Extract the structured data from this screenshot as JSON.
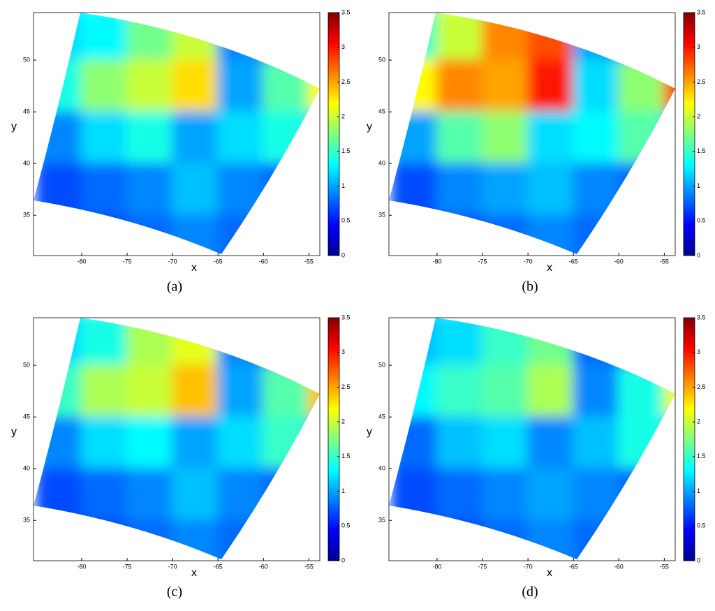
{
  "chart_data": [
    {
      "type": "heatmap",
      "caption": "(a)",
      "xlabel": "x",
      "ylabel": "y",
      "xlim": [
        -85.3,
        -53.8
      ],
      "ylim": [
        31.1,
        54.6
      ],
      "xticks": [
        -80,
        -75,
        -70,
        -65,
        -60,
        -55
      ],
      "yticks": [
        35,
        40,
        45,
        50
      ],
      "clim": [
        0,
        3.5
      ],
      "cticks": [
        0,
        0.5,
        1,
        1.5,
        2,
        2.5,
        3,
        3.5
      ],
      "x": [
        -82.5,
        -77.5,
        -72.5,
        -67.5,
        -62.5,
        -57.5,
        -52.5
      ],
      "y": [
        52.5,
        47.5,
        42.5,
        37.5,
        32.5
      ],
      "z": [
        [
          1.2,
          1.3,
          1.7,
          2.0,
          0.9,
          0.6,
          0.8
        ],
        [
          1.4,
          1.8,
          2.0,
          2.3,
          1.0,
          1.6,
          2.2
        ],
        [
          0.9,
          1.2,
          1.4,
          1.0,
          1.2,
          1.4,
          1.0
        ],
        [
          0.7,
          0.8,
          0.9,
          1.1,
          0.9,
          0.8,
          0.7
        ],
        [
          0.6,
          0.7,
          0.8,
          0.9,
          0.8,
          0.6,
          0.6
        ]
      ]
    },
    {
      "type": "heatmap",
      "caption": "(b)",
      "xlabel": "x",
      "ylabel": "y",
      "xlim": [
        -85.3,
        -53.8
      ],
      "ylim": [
        31.1,
        54.6
      ],
      "xticks": [
        -80,
        -75,
        -70,
        -65,
        -60,
        -55
      ],
      "yticks": [
        35,
        40,
        45,
        50
      ],
      "clim": [
        0,
        3.5
      ],
      "cticks": [
        0,
        0.5,
        1,
        1.5,
        2,
        2.5,
        3,
        3.5
      ],
      "x": [
        -82.5,
        -77.5,
        -72.5,
        -67.5,
        -62.5,
        -57.5,
        -52.5
      ],
      "y": [
        52.5,
        47.5,
        42.5,
        37.5,
        32.5
      ],
      "z": [
        [
          1.5,
          2.0,
          2.6,
          2.8,
          1.0,
          0.6,
          0.8
        ],
        [
          2.2,
          2.6,
          2.5,
          3.0,
          1.2,
          1.8,
          2.8
        ],
        [
          1.0,
          1.6,
          1.8,
          1.2,
          1.3,
          1.6,
          1.1
        ],
        [
          0.7,
          0.9,
          1.0,
          1.1,
          0.9,
          0.8,
          0.7
        ],
        [
          0.6,
          0.7,
          0.8,
          0.9,
          0.8,
          0.6,
          0.6
        ]
      ]
    },
    {
      "type": "heatmap",
      "caption": "(c)",
      "xlabel": "x",
      "ylabel": "y",
      "xlim": [
        -85.3,
        -53.8
      ],
      "ylim": [
        31.1,
        54.6
      ],
      "xticks": [
        -80,
        -75,
        -70,
        -65,
        -60,
        -55
      ],
      "yticks": [
        35,
        40,
        45,
        50
      ],
      "clim": [
        0,
        3.5
      ],
      "cticks": [
        0,
        0.5,
        1,
        1.5,
        2,
        2.5,
        3,
        3.5
      ],
      "x": [
        -82.5,
        -77.5,
        -72.5,
        -67.5,
        -62.5,
        -57.5,
        -52.5
      ],
      "y": [
        52.5,
        47.5,
        42.5,
        37.5,
        32.5
      ],
      "z": [
        [
          1.2,
          1.4,
          1.9,
          2.1,
          0.9,
          0.6,
          0.8
        ],
        [
          1.5,
          1.9,
          2.0,
          2.4,
          1.0,
          1.6,
          2.4
        ],
        [
          0.9,
          1.2,
          1.3,
          1.0,
          1.2,
          1.5,
          1.0
        ],
        [
          0.7,
          0.8,
          0.9,
          1.1,
          0.9,
          0.8,
          0.7
        ],
        [
          0.6,
          0.7,
          0.8,
          0.9,
          0.8,
          0.6,
          0.6
        ]
      ]
    },
    {
      "type": "heatmap",
      "caption": "(d)",
      "xlabel": "x",
      "ylabel": "y",
      "xlim": [
        -85.3,
        -53.8
      ],
      "ylim": [
        31.1,
        54.6
      ],
      "xticks": [
        -80,
        -75,
        -70,
        -65,
        -60,
        -55
      ],
      "yticks": [
        35,
        40,
        45,
        50
      ],
      "clim": [
        0,
        3.5
      ],
      "cticks": [
        0,
        0.5,
        1,
        1.5,
        2,
        2.5,
        3,
        3.5
      ],
      "x": [
        -82.5,
        -77.5,
        -72.5,
        -67.5,
        -62.5,
        -57.5,
        -52.5
      ],
      "y": [
        52.5,
        47.5,
        42.5,
        37.5,
        32.5
      ],
      "z": [
        [
          1.1,
          1.2,
          1.5,
          1.7,
          0.8,
          0.6,
          0.8
        ],
        [
          1.3,
          1.5,
          1.6,
          1.9,
          0.9,
          1.4,
          2.1
        ],
        [
          0.8,
          1.1,
          1.2,
          0.9,
          1.1,
          1.4,
          1.0
        ],
        [
          0.7,
          0.8,
          0.9,
          1.0,
          0.9,
          0.8,
          0.7
        ],
        [
          0.6,
          0.7,
          0.8,
          0.9,
          0.8,
          0.6,
          0.6
        ]
      ]
    }
  ]
}
